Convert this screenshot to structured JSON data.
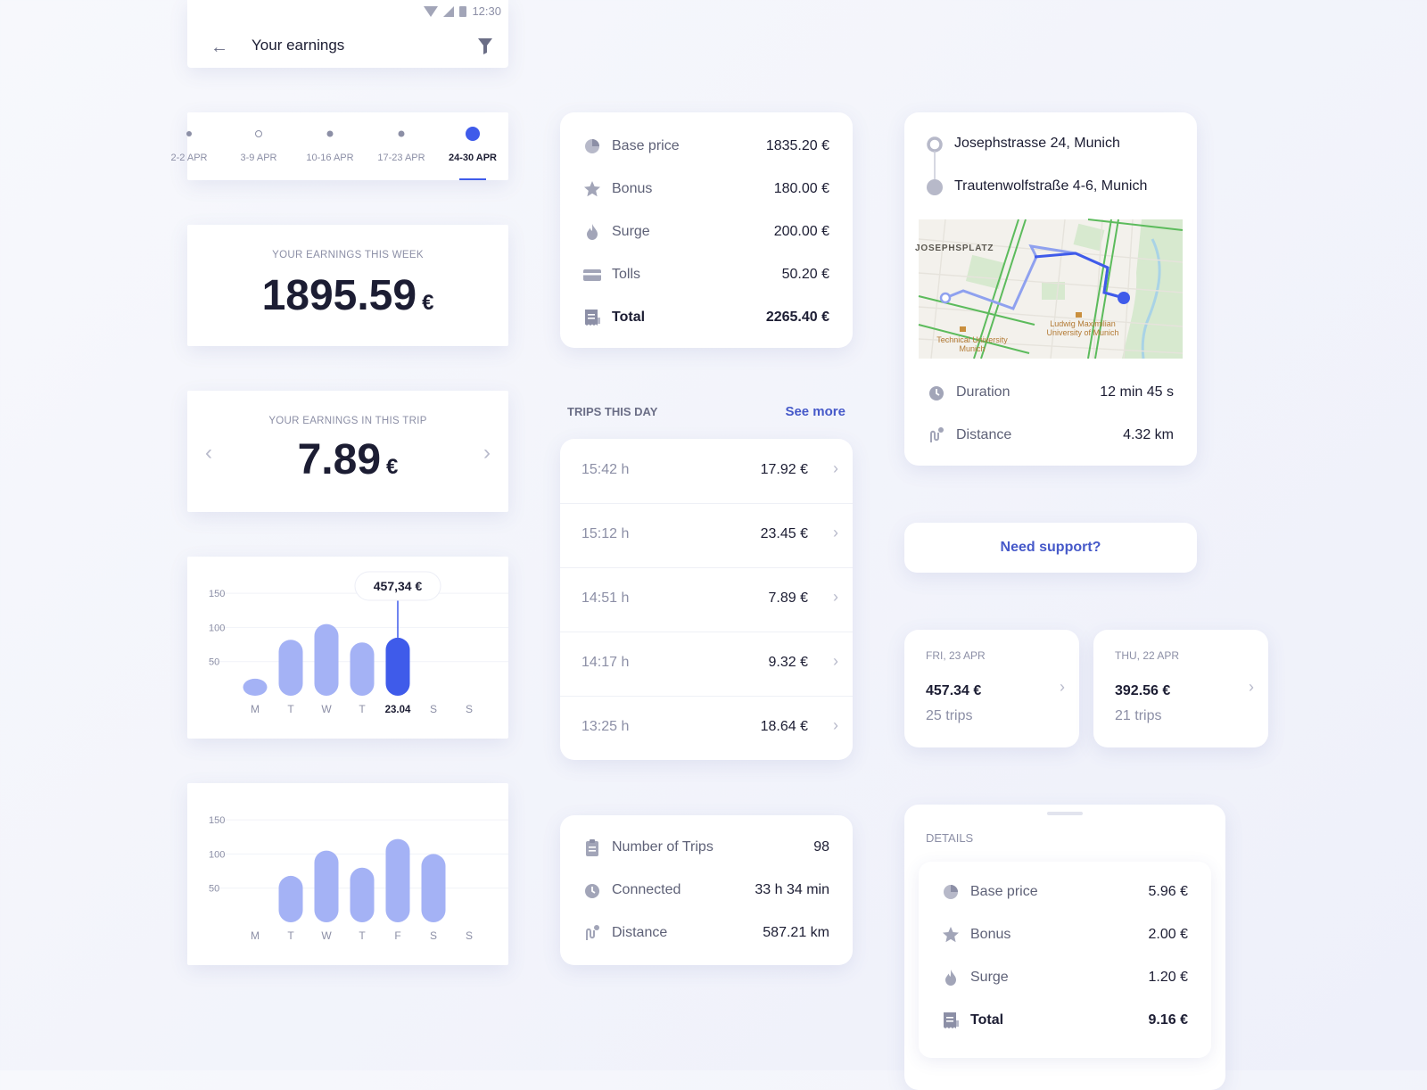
{
  "topbar": {
    "title": "Your earnings",
    "time": "12:30"
  },
  "weeks": {
    "items": [
      {
        "label": "2-2 APR",
        "active": false
      },
      {
        "label": "3-9 APR",
        "active": false
      },
      {
        "label": "10-16 APR",
        "active": false
      },
      {
        "label": "17-23 APR",
        "active": false
      },
      {
        "label": "24-30 APR",
        "active": true
      }
    ]
  },
  "earnings_week": {
    "caption": "YOUR EARNINGS THIS WEEK",
    "amount": "1895.59",
    "currency": "€"
  },
  "earnings_trip": {
    "caption": "YOUR EARNINGS IN THIS TRIP",
    "amount": "7.89",
    "currency": "€"
  },
  "chart_data": [
    {
      "type": "bar",
      "categories": [
        "M",
        "T",
        "W",
        "T",
        "23.04",
        "S",
        "S"
      ],
      "values": [
        25,
        82,
        105,
        78,
        85,
        null,
        null
      ],
      "highlight_index": 4,
      "tooltip": "457,34 €",
      "yticks": [
        50,
        100,
        150
      ],
      "ylim": [
        0,
        175
      ],
      "grid": true
    },
    {
      "type": "bar",
      "categories": [
        "M",
        "T",
        "W",
        "T",
        "F",
        "S",
        "S"
      ],
      "values": [
        null,
        68,
        105,
        80,
        122,
        100,
        null
      ],
      "yticks": [
        50,
        100,
        150
      ],
      "ylim": [
        0,
        175
      ],
      "grid": true
    }
  ],
  "breakdown": {
    "rows": [
      {
        "icon": "pie-chart-icon",
        "label": "Base price",
        "value": "1835.20 €",
        "bold": false
      },
      {
        "icon": "star-icon",
        "label": "Bonus",
        "value": "180.00 €",
        "bold": false
      },
      {
        "icon": "flame-icon",
        "label": "Surge",
        "value": "200.00 €",
        "bold": false
      },
      {
        "icon": "card-icon",
        "label": "Tolls",
        "value": "50.20 €",
        "bold": false
      },
      {
        "icon": "receipt-icon",
        "label": "Total",
        "value": "2265.40 €",
        "bold": true
      }
    ]
  },
  "trips": {
    "title": "TRIPS THIS DAY",
    "see_more": "See more",
    "items": [
      {
        "time": "15:42 h",
        "amount": "17.92 €"
      },
      {
        "time": "15:12 h",
        "amount": "23.45 €"
      },
      {
        "time": "14:51 h",
        "amount": "7.89 €"
      },
      {
        "time": "14:17 h",
        "amount": "9.32 €"
      },
      {
        "time": "13:25 h",
        "amount": "18.64 €"
      }
    ]
  },
  "stats": {
    "rows": [
      {
        "icon": "clipboard-icon",
        "label": "Number of Trips",
        "value": "98"
      },
      {
        "icon": "clock-icon",
        "label": "Connected",
        "value": "33 h 34 min"
      },
      {
        "icon": "route-icon",
        "label": "Distance",
        "value": "587.21 km"
      }
    ]
  },
  "route": {
    "from": "Josephstrasse 24, Munich",
    "to": "Trautenwolfstraße 4-6, Munich",
    "map_labels": {
      "square": "JOSEPHSPLATZ",
      "tum": "Technical University Munich",
      "lmu": "Ludwig Maximilian University of Munich"
    },
    "rows": [
      {
        "icon": "clock-icon",
        "label": "Duration",
        "value": "12 min 45 s"
      },
      {
        "icon": "route-icon",
        "label": "Distance",
        "value": "4.32 km"
      }
    ]
  },
  "support": {
    "label": "Need support?"
  },
  "days": [
    {
      "date": "FRI, 23 APR",
      "amount": "457.34 €",
      "trips": "25 trips"
    },
    {
      "date": "THU, 22 APR",
      "amount": "392.56 €",
      "trips": "21 trips"
    }
  ],
  "details": {
    "title": "DETAILS",
    "rows": [
      {
        "icon": "pie-chart-icon",
        "label": "Base price",
        "value": "5.96 €",
        "bold": false
      },
      {
        "icon": "star-icon",
        "label": "Bonus",
        "value": "2.00 €",
        "bold": false
      },
      {
        "icon": "flame-icon",
        "label": "Surge",
        "value": "1.20 €",
        "bold": false
      },
      {
        "icon": "receipt-icon",
        "label": "Total",
        "value": "9.16 €",
        "bold": true
      }
    ]
  },
  "colors": {
    "accent": "#3f5bea",
    "bar": "#a4b2f5",
    "link": "#4659c9",
    "text": "#1c1d33",
    "muted": "#8c8fa6"
  }
}
